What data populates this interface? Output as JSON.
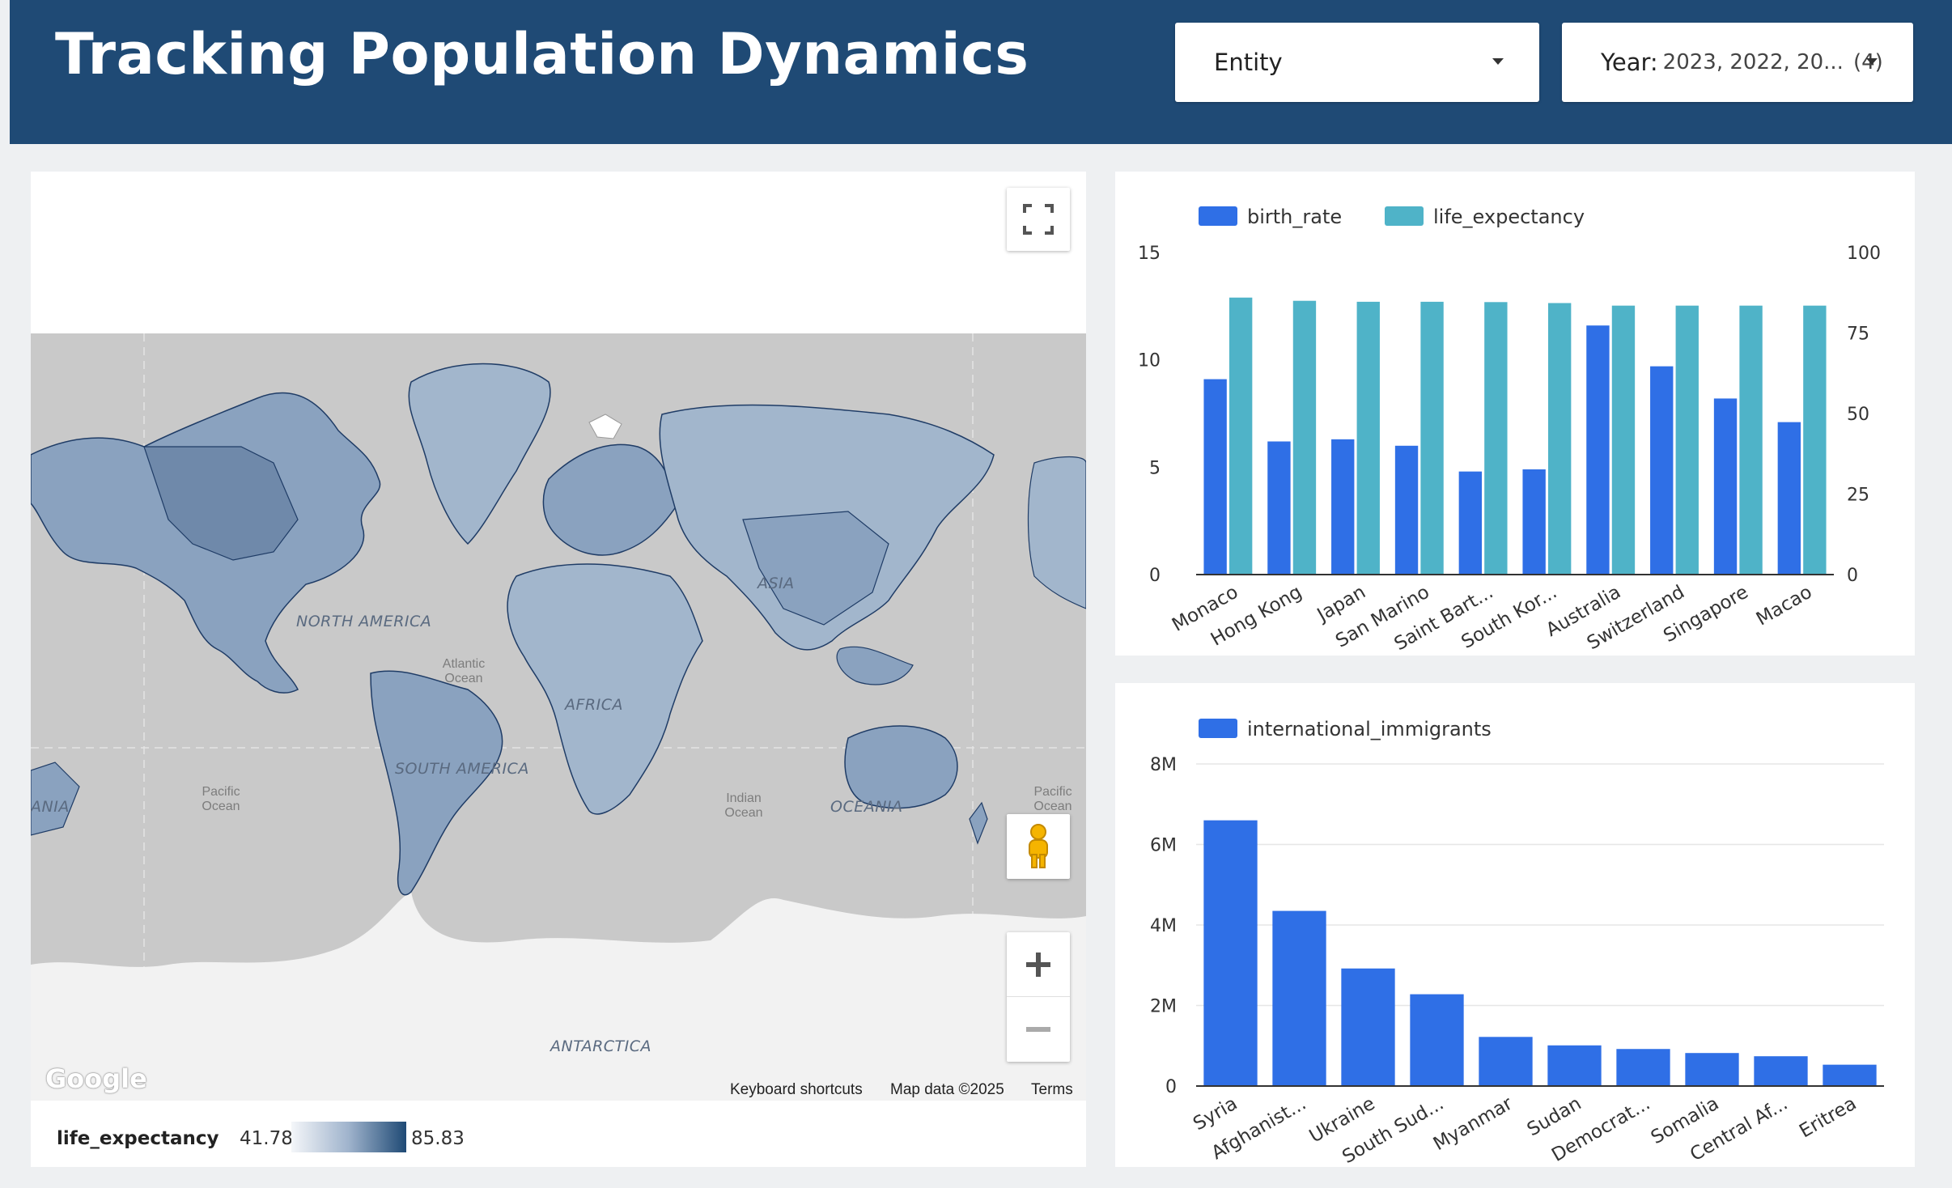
{
  "header": {
    "title": "Tracking Population Dynamics",
    "entity_filter": {
      "label": "Entity"
    },
    "year_filter": {
      "label": "Year:",
      "selected": "2023, 2022, 20...",
      "count": "(4)"
    }
  },
  "map": {
    "fullscreen_icon": "fullscreen-icon",
    "pegman_icon": "street-view-pegman-icon",
    "zoom_in_icon": "plus-icon",
    "zoom_out_icon": "minus-icon",
    "ocean_color": "#c9c9c9",
    "land_color": "#a2b6cc",
    "antarctica_color": "#f2f2f2",
    "labels": {
      "north_america": "NORTH AMERICA",
      "south_america": "SOUTH AMERICA",
      "africa": "AFRICA",
      "asia": "ASIA",
      "oceania": "OCEANIA",
      "oceania_left": "ANIA",
      "antarctica": "ANTARCTICA",
      "atlantic": "Atlantic Ocean",
      "pacific_left": "Pacific Ocean",
      "pacific_right": "Pacific Ocean",
      "indian": "Indian Ocean"
    },
    "attribution": {
      "google": "Google",
      "keyboard": "Keyboard shortcuts",
      "map_data": "Map data ©2025",
      "terms": "Terms"
    },
    "legend": {
      "metric": "life_expectancy",
      "min": "41.78",
      "max": "85.83",
      "color_low": "#f4f6f9",
      "color_high": "#1f4a75"
    }
  },
  "chart_data": [
    {
      "type": "bar",
      "categories": [
        "Monaco",
        "Hong Kong",
        "Japan",
        "San Marino",
        "Saint Bart...",
        "South Kor...",
        "Australia",
        "Switzerland",
        "Singapore",
        "Macao"
      ],
      "series": [
        {
          "name": "birth_rate",
          "axis": "left",
          "color": "#2f6fe6",
          "values": [
            9.1,
            6.2,
            6.3,
            6.0,
            4.8,
            4.9,
            11.6,
            9.7,
            8.2,
            7.1
          ]
        },
        {
          "name": "life_expectancy",
          "axis": "right",
          "color": "#4fb3c8",
          "values": [
            86.0,
            85.0,
            84.7,
            84.7,
            84.6,
            84.3,
            83.5,
            83.5,
            83.5,
            83.5
          ]
        }
      ],
      "ylim_left": [
        0,
        15
      ],
      "yticks_left": [
        "0",
        "5",
        "10",
        "15"
      ],
      "ylim_right": [
        0,
        100
      ],
      "yticks_right": [
        "0",
        "25",
        "50",
        "75",
        "100"
      ],
      "legend_position": "top-left",
      "grid": false
    },
    {
      "type": "bar",
      "categories": [
        "Syria",
        "Afghanist...",
        "Ukraine",
        "South Sud...",
        "Myanmar",
        "Sudan",
        "Democrat...",
        "Somalia",
        "Central Af...",
        "Eritrea"
      ],
      "series": [
        {
          "name": "international_immigrants",
          "color": "#2f6fe6",
          "values": [
            6600000,
            4350000,
            2920000,
            2280000,
            1220000,
            1010000,
            920000,
            820000,
            740000,
            530000
          ]
        }
      ],
      "ylim": [
        0,
        8000000
      ],
      "yticks": [
        "0",
        "2M",
        "4M",
        "6M",
        "8M"
      ],
      "legend_position": "top-left",
      "grid": true
    }
  ]
}
